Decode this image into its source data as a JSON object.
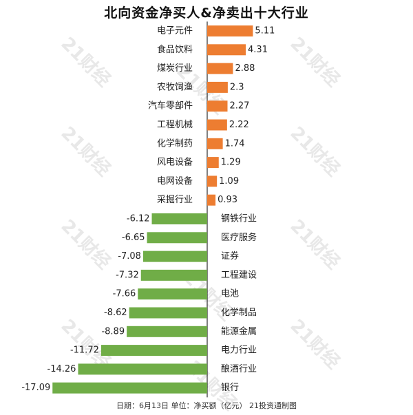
{
  "title": "北向资金净买人&净卖出十大行业",
  "footer": "日期：6月13日 单位：净买额（亿元） 21投资通制图",
  "watermark": "21财经",
  "colors": {
    "positive": "#ED7D31",
    "negative": "#70AD47",
    "axis": "#000000",
    "text": "#222222"
  },
  "chart_data": {
    "type": "bar",
    "orientation": "horizontal",
    "title": "北向资金净买人&净卖出十大行业",
    "categories": [
      "电子元件",
      "食品饮料",
      "煤炭行业",
      "农牧饲渔",
      "汽车零部件",
      "工程机械",
      "化学制药",
      "风电设备",
      "电网设备",
      "采掘行业",
      "钢铁行业",
      "医疗服务",
      "证券",
      "工程建设",
      "电池",
      "化学制品",
      "能源金属",
      "电力行业",
      "酿酒行业",
      "银行"
    ],
    "values": [
      5.11,
      4.31,
      2.88,
      2.3,
      2.27,
      2.22,
      1.74,
      1.29,
      1.09,
      0.93,
      -6.12,
      -6.65,
      -7.08,
      -7.32,
      -7.66,
      -8.62,
      -8.89,
      -11.72,
      -14.26,
      -17.09
    ],
    "value_labels": [
      "5.11",
      "4.31",
      "2.88",
      "2.3",
      "2.27",
      "2.22",
      "1.74",
      "1.29",
      "1.09",
      "0.93",
      "-6.12",
      "-6.65",
      "-7.08",
      "-7.32",
      "-7.66",
      "-8.62",
      "-8.89",
      "-11.72",
      "-14.26",
      "-17.09"
    ],
    "xlim": [
      -17.09,
      5.11
    ],
    "grid": false,
    "legend": "none"
  }
}
